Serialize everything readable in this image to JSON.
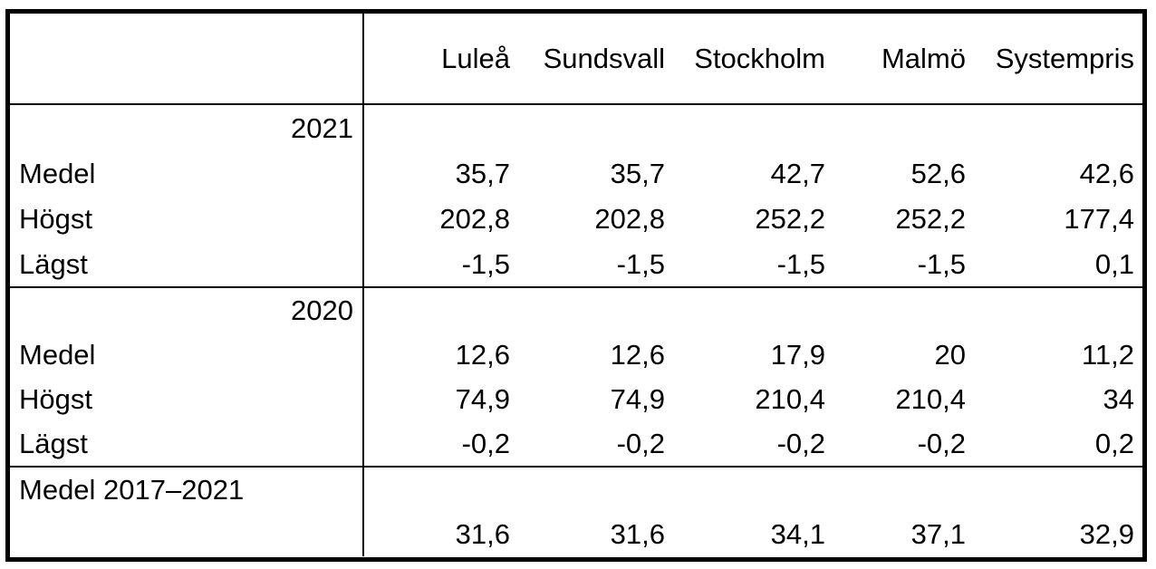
{
  "table": {
    "header": {
      "corner": "",
      "columns": [
        "Luleå",
        "Sundsvall",
        "Stockholm",
        "Malmö",
        "Systempris"
      ]
    },
    "sections": [
      {
        "year": "2021",
        "rows": [
          {
            "label": "Medel",
            "values": [
              "35,7",
              "35,7",
              "42,7",
              "52,6",
              "42,6"
            ]
          },
          {
            "label": "Högst",
            "values": [
              "202,8",
              "202,8",
              "252,2",
              "252,2",
              "177,4"
            ]
          },
          {
            "label": "Lägst",
            "values": [
              "-1,5",
              "-1,5",
              "-1,5",
              "-1,5",
              "0,1"
            ]
          }
        ]
      },
      {
        "year": "2020",
        "rows": [
          {
            "label": "Medel",
            "values": [
              "12,6",
              "12,6",
              "17,9",
              "20",
              "11,2"
            ]
          },
          {
            "label": "Högst",
            "values": [
              "74,9",
              "74,9",
              "210,4",
              "210,4",
              "34"
            ]
          },
          {
            "label": "Lägst",
            "values": [
              "-0,2",
              "-0,2",
              "-0,2",
              "-0,2",
              "0,2"
            ]
          }
        ]
      }
    ],
    "footer": {
      "label": "Medel 2017–2021",
      "values": [
        "31,6",
        "31,6",
        "34,1",
        "37,1",
        "32,9"
      ]
    }
  },
  "colors": {
    "border": "#000000",
    "background": "#ffffff",
    "text": "#000000"
  }
}
